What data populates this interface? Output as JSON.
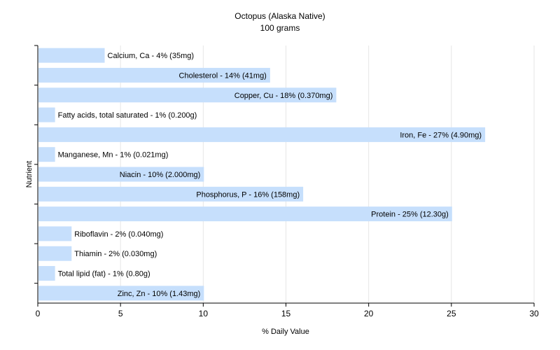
{
  "chart_data": {
    "type": "bar",
    "orientation": "horizontal",
    "title": "Octopus (Alaska Native)",
    "subtitle": "100 grams",
    "xlabel": "% Daily Value",
    "ylabel": "Nutrient",
    "xlim": [
      0,
      30
    ],
    "xticks": [
      0,
      5,
      10,
      15,
      20,
      25,
      30
    ],
    "grid": true,
    "bar_color": "#c6dffc",
    "categories": [
      "Calcium, Ca",
      "Cholesterol",
      "Copper, Cu",
      "Fatty acids, total saturated",
      "Iron, Fe",
      "Manganese, Mn",
      "Niacin",
      "Phosphorus, P",
      "Protein",
      "Riboflavin",
      "Thiamin",
      "Total lipid (fat)",
      "Zinc, Zn"
    ],
    "values": [
      4,
      14,
      18,
      1,
      27,
      1,
      10,
      16,
      25,
      2,
      2,
      1,
      10
    ],
    "labels": [
      "Calcium, Ca - 4% (35mg)",
      "Cholesterol - 14% (41mg)",
      "Copper, Cu - 18% (0.370mg)",
      "Fatty acids, total saturated - 1% (0.200g)",
      "Iron, Fe - 27% (4.90mg)",
      "Manganese, Mn - 1% (0.021mg)",
      "Niacin - 10% (2.000mg)",
      "Phosphorus, P - 16% (158mg)",
      "Protein - 25% (12.30g)",
      "Riboflavin - 2% (0.040mg)",
      "Thiamin - 2% (0.030mg)",
      "Total lipid (fat) - 1% (0.80g)",
      "Zinc, Zn - 10% (1.43mg)"
    ]
  }
}
